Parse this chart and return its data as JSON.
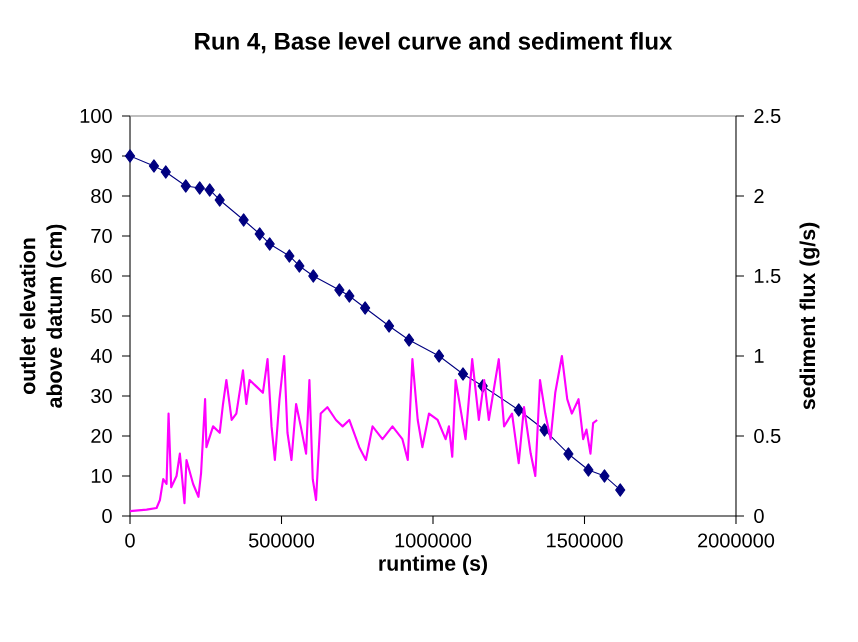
{
  "chart_data": {
    "type": "line",
    "title": "Run 4, Base level curve and sediment flux",
    "xlabel": "runtime (s)",
    "ylabel": "outlet elevation above datum (cm)",
    "y2label": "sediment flux (g/s)",
    "xlim": [
      0,
      2000000
    ],
    "xticks": [
      0,
      500000,
      1000000,
      1500000,
      2000000
    ],
    "ylim": [
      0,
      100
    ],
    "yticks": [
      0,
      10,
      20,
      30,
      40,
      50,
      60,
      70,
      80,
      90,
      100
    ],
    "y2lim": [
      0,
      2.5
    ],
    "y2ticks": [
      0,
      0.5,
      1,
      1.5,
      2,
      2.5
    ],
    "grid": false,
    "series": [
      {
        "color": "#000080",
        "marker": "diamond",
        "line_style": "solid",
        "x": [
          0,
          79000,
          118000,
          184000,
          230000,
          263000,
          296000,
          375000,
          428000,
          461000,
          526000,
          559000,
          605000,
          691000,
          724000,
          776000,
          855000,
          921000,
          1020000,
          1099000,
          1164000,
          1283000,
          1368000,
          1447000,
          1513000,
          1566000,
          1618000
        ],
        "values": [
          90,
          87.5,
          86,
          82.5,
          82,
          81.5,
          79,
          74,
          70.5,
          68,
          65,
          62.5,
          60,
          56.5,
          55,
          52,
          47.5,
          44,
          40,
          35.5,
          32.5,
          26.5,
          21.5,
          15.5,
          11.5,
          10,
          6.5
        ]
      },
      {
        "color": "#ff00ff",
        "axis": "y2",
        "marker": "none",
        "line_style": "solid",
        "x": [
          0,
          54800,
          87700,
          98700,
          109600,
          120600,
          127200,
          136000,
          153500,
          164500,
          179800,
          186400,
          208300,
          225900,
          234600,
          247800,
          252200,
          274100,
          296100,
          307000,
          318000,
          335500,
          350900,
          372800,
          383800,
          394700,
          416700,
          438600,
          453900,
          467100,
          478100,
          493400,
          508800,
          519700,
          532900,
          548200,
          563600,
          581100,
          592100,
          603100,
          614000,
          629400,
          651300,
          679800,
          701800,
          723700,
          756600,
          778500,
          800400,
          833300,
          866200,
          899100,
          916700,
          932000,
          949600,
          964900,
          986800,
          1015300,
          1041600,
          1052600,
          1063600,
          1074600,
          1085500,
          1107400,
          1129400,
          1151300,
          1168900,
          1184200,
          1217100,
          1234600,
          1260900,
          1282900,
          1300400,
          1322400,
          1337700,
          1353100,
          1370600,
          1388200,
          1403500,
          1425400,
          1443000,
          1458300,
          1480300,
          1495600,
          1506600,
          1519700,
          1528500,
          1541700
        ],
        "values": [
          0.03,
          0.04,
          0.05,
          0.1,
          0.23,
          0.2,
          0.64,
          0.18,
          0.25,
          0.39,
          0.08,
          0.35,
          0.2,
          0.12,
          0.27,
          0.73,
          0.43,
          0.56,
          0.52,
          0.7,
          0.85,
          0.6,
          0.64,
          0.91,
          0.7,
          0.85,
          0.81,
          0.77,
          0.98,
          0.56,
          0.35,
          0.73,
          1,
          0.52,
          0.35,
          0.7,
          0.56,
          0.39,
          0.85,
          0.23,
          0.1,
          0.64,
          0.68,
          0.6,
          0.56,
          0.6,
          0.43,
          0.35,
          0.56,
          0.48,
          0.56,
          0.48,
          0.35,
          0.98,
          0.6,
          0.43,
          0.64,
          0.6,
          0.48,
          0.56,
          0.37,
          0.85,
          0.73,
          0.48,
          0.98,
          0.6,
          0.85,
          0.6,
          0.98,
          0.56,
          0.64,
          0.33,
          0.68,
          0.39,
          0.25,
          0.85,
          0.64,
          0.48,
          0.77,
          1,
          0.73,
          0.64,
          0.73,
          0.48,
          0.54,
          0.39,
          0.58,
          0.6
        ]
      }
    ]
  }
}
